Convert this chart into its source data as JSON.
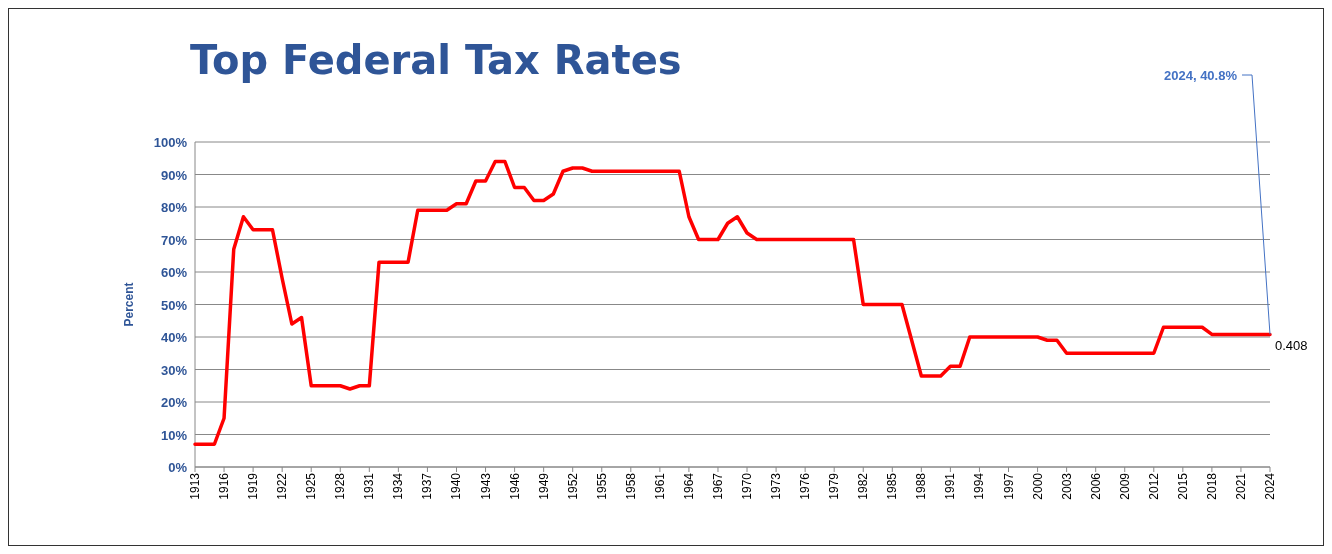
{
  "chart_data": {
    "type": "line",
    "title": "Top Federal Tax Rates",
    "ylabel": "Percent",
    "x": [
      1913,
      1914,
      1915,
      1916,
      1917,
      1918,
      1919,
      1920,
      1921,
      1922,
      1923,
      1924,
      1925,
      1926,
      1927,
      1928,
      1929,
      1930,
      1931,
      1932,
      1933,
      1934,
      1935,
      1936,
      1937,
      1938,
      1939,
      1940,
      1941,
      1942,
      1943,
      1944,
      1945,
      1946,
      1947,
      1948,
      1949,
      1950,
      1951,
      1952,
      1953,
      1954,
      1955,
      1956,
      1957,
      1958,
      1959,
      1960,
      1961,
      1962,
      1963,
      1964,
      1965,
      1966,
      1967,
      1968,
      1969,
      1970,
      1971,
      1972,
      1973,
      1974,
      1975,
      1976,
      1977,
      1978,
      1979,
      1980,
      1981,
      1982,
      1983,
      1984,
      1985,
      1986,
      1987,
      1988,
      1989,
      1990,
      1991,
      1992,
      1993,
      1994,
      1995,
      1996,
      1997,
      1998,
      1999,
      2000,
      2001,
      2002,
      2003,
      2004,
      2005,
      2006,
      2007,
      2008,
      2009,
      2010,
      2011,
      2012,
      2013,
      2014,
      2015,
      2016,
      2017,
      2018,
      2019,
      2020,
      2021,
      2022,
      2023,
      2024
    ],
    "series": [
      {
        "color": "#ff0000",
        "values": [
          0.07,
          0.07,
          0.07,
          0.15,
          0.67,
          0.77,
          0.73,
          0.73,
          0.73,
          0.58,
          0.44,
          0.46,
          0.25,
          0.25,
          0.25,
          0.25,
          0.24,
          0.25,
          0.25,
          0.63,
          0.63,
          0.63,
          0.63,
          0.79,
          0.79,
          0.79,
          0.79,
          0.81,
          0.81,
          0.88,
          0.88,
          0.94,
          0.94,
          0.86,
          0.86,
          0.82,
          0.82,
          0.84,
          0.91,
          0.92,
          0.92,
          0.91,
          0.91,
          0.91,
          0.91,
          0.91,
          0.91,
          0.91,
          0.91,
          0.91,
          0.91,
          0.77,
          0.7,
          0.7,
          0.7,
          0.75,
          0.77,
          0.72,
          0.7,
          0.7,
          0.7,
          0.7,
          0.7,
          0.7,
          0.7,
          0.7,
          0.7,
          0.7,
          0.7,
          0.5,
          0.5,
          0.5,
          0.5,
          0.5,
          0.39,
          0.28,
          0.28,
          0.28,
          0.31,
          0.31,
          0.4,
          0.4,
          0.4,
          0.4,
          0.4,
          0.4,
          0.4,
          0.4,
          0.39,
          0.39,
          0.35,
          0.35,
          0.35,
          0.35,
          0.35,
          0.35,
          0.35,
          0.35,
          0.35,
          0.35,
          0.43,
          0.43,
          0.43,
          0.43,
          0.43,
          0.408,
          0.408,
          0.408,
          0.408,
          0.408,
          0.408,
          0.408
        ],
        "value_labels": [
          null,
          null,
          null,
          null,
          null,
          null,
          null,
          null,
          null,
          null,
          null,
          null,
          null,
          null,
          null,
          null,
          null,
          null,
          null,
          null,
          null,
          null,
          null,
          null,
          null,
          null,
          null,
          null,
          null,
          null,
          null,
          null,
          null,
          null,
          null,
          null,
          null,
          null,
          null,
          null,
          null,
          null,
          null,
          null,
          null,
          null,
          null,
          null,
          null,
          null,
          null,
          null,
          null,
          null,
          null,
          null,
          null,
          null,
          null,
          null,
          null,
          null,
          null,
          null,
          null,
          null,
          null,
          null,
          null,
          null,
          null,
          null,
          null,
          null,
          null,
          null,
          null,
          null,
          null,
          null,
          null,
          null,
          null,
          null,
          null,
          null,
          null,
          null,
          null,
          null,
          null,
          null,
          null,
          null,
          null,
          null,
          null,
          null,
          null,
          null,
          null,
          null,
          null,
          null,
          null,
          null,
          null,
          null,
          null,
          null,
          null,
          "0.408"
        ]
      }
    ],
    "xlim": [
      1913,
      2024
    ],
    "xticks": [
      1913,
      1916,
      1919,
      1922,
      1925,
      1928,
      1931,
      1934,
      1937,
      1940,
      1943,
      1946,
      1949,
      1952,
      1955,
      1958,
      1961,
      1964,
      1967,
      1970,
      1973,
      1976,
      1979,
      1982,
      1985,
      1988,
      1991,
      1994,
      1997,
      2000,
      2003,
      2006,
      2009,
      2012,
      2015,
      2018,
      2021,
      2024
    ],
    "ylim": [
      0,
      1
    ],
    "yticks": [
      {
        "value": 0,
        "label": "0%"
      },
      {
        "value": 0.1,
        "label": "10%"
      },
      {
        "value": 0.2,
        "label": "20%"
      },
      {
        "value": 0.3,
        "label": "30%"
      },
      {
        "value": 0.4,
        "label": "40%"
      },
      {
        "value": 0.5,
        "label": "50%"
      },
      {
        "value": 0.6,
        "label": "60%"
      },
      {
        "value": 0.7,
        "label": "70%"
      },
      {
        "value": 0.8,
        "label": "80%"
      },
      {
        "value": 0.9,
        "label": "90%"
      },
      {
        "value": 1,
        "label": "100%"
      }
    ],
    "grid": "y",
    "annotations": [
      {
        "text": "2024, 40.8%",
        "x": 2024,
        "y": 0.408
      }
    ]
  }
}
